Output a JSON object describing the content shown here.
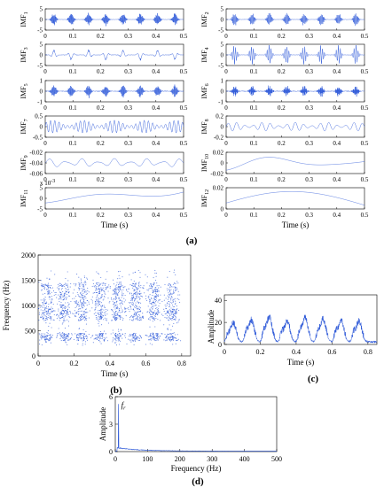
{
  "chart_data": [
    {
      "panel": "a",
      "panel_label": "(a)",
      "type": "line",
      "xlabel": "Time (s)",
      "xlim": [
        0,
        0.5
      ],
      "x_ticks": [
        "0",
        "0.1",
        "0.2",
        "0.3",
        "0.4",
        "0.5"
      ],
      "subplots": [
        {
          "ylabel": "IMF",
          "sub": "1",
          "ylim": [
            -5,
            5
          ],
          "yticks": [
            "5",
            "0",
            "-5"
          ],
          "exp": "",
          "kind": "burst",
          "amp": 0.55,
          "freq": 600,
          "bursts": 8,
          "noise": 0.3
        },
        {
          "ylabel": "IMF",
          "sub": "2",
          "ylim": [
            -5,
            5
          ],
          "yticks": [
            "5",
            "0",
            "-5"
          ],
          "exp": "",
          "kind": "burst",
          "amp": 0.55,
          "freq": 560,
          "bursts": 8,
          "noise": 0.3
        },
        {
          "ylabel": "IMF",
          "sub": "3",
          "ylim": [
            -5,
            5
          ],
          "yticks": [
            "5",
            "0",
            "-5"
          ],
          "exp": "",
          "kind": "burst",
          "amp": 0.45,
          "freq": 480,
          "bursts": 8,
          "noise": 0.4
        },
        {
          "ylabel": "IMF",
          "sub": "4",
          "ylim": [
            -5,
            5
          ],
          "yticks": [
            "5",
            "0",
            "-5"
          ],
          "exp": "",
          "kind": "burst",
          "amp": 0.85,
          "freq": 420,
          "bursts": 8,
          "noise": 0.3
        },
        {
          "ylabel": "IMF",
          "sub": "5",
          "ylim": [
            -1,
            1
          ],
          "yticks": [
            "1",
            "0",
            "-1"
          ],
          "exp": "",
          "kind": "burst",
          "amp": 0.55,
          "freq": 340,
          "bursts": 8,
          "noise": 0.6
        },
        {
          "ylabel": "IMF",
          "sub": "6",
          "ylim": [
            -1,
            1
          ],
          "yticks": [
            "1",
            "0",
            "-1"
          ],
          "exp": "",
          "kind": "burst",
          "amp": 0.5,
          "freq": 260,
          "bursts": 8,
          "noise": 0.6
        },
        {
          "ylabel": "IMF",
          "sub": "7",
          "ylim": [
            -0.5,
            0.5
          ],
          "yticks": [
            "0.5",
            "0",
            "-0.5"
          ],
          "exp": "",
          "kind": "wave",
          "amp": 0.65,
          "freq": 65,
          "noise": 0.2
        },
        {
          "ylabel": "IMF",
          "sub": "8",
          "ylim": [
            -0.2,
            0.2
          ],
          "yticks": [
            "0.2",
            "0",
            "-0.2"
          ],
          "exp": "",
          "kind": "wave",
          "amp": 0.45,
          "freq": 33,
          "noise": 0.2
        },
        {
          "ylabel": "IMF",
          "sub": "9",
          "ylim": [
            -0.06,
            -0.02
          ],
          "yticks": [
            "-0.02",
            "-0.04",
            "-0.06"
          ],
          "exp": "",
          "kind": "wave",
          "amp": 0.45,
          "freq": 17,
          "noise": 0.1
        },
        {
          "ylabel": "IMF",
          "sub": "10",
          "ylim": [
            -0.02,
            0.02
          ],
          "yticks": [
            "0.02",
            "0",
            "-0.02"
          ],
          "exp": "",
          "kind": "slow10",
          "amp": 0.8,
          "noise": 0
        },
        {
          "ylabel": "IMF",
          "sub": "11",
          "ylim": [
            -5,
            5
          ],
          "yticks": [
            "5",
            "0",
            "-5"
          ],
          "exp": "x 10",
          "exp_power": "-3",
          "kind": "slow11",
          "amp": 0.8,
          "noise": 0
        },
        {
          "ylabel": "IMF",
          "sub": "12",
          "ylim": [
            0,
            0.02
          ],
          "yticks": [
            "0.02",
            "0"
          ],
          "exp": "",
          "kind": "arch",
          "amp": 0.8,
          "noise": 0
        }
      ]
    },
    {
      "panel": "b",
      "panel_label": "(b)",
      "type": "scatter",
      "xlabel": "Time (s)",
      "ylabel": "Frequency (Hz)",
      "xlim": [
        0,
        0.85
      ],
      "ylim": [
        0,
        2000
      ],
      "x_ticks": [
        "0",
        "0.2",
        "0.4",
        "0.6",
        "0.8"
      ],
      "y_ticks": [
        "0",
        "500",
        "1000",
        "1500",
        "2000"
      ],
      "burst_centers_s": [
        0.05,
        0.145,
        0.245,
        0.345,
        0.445,
        0.545,
        0.645,
        0.745
      ],
      "frequency_bands_hz": [
        [
          300,
          450
        ],
        [
          700,
          900
        ],
        [
          900,
          1200
        ],
        [
          1200,
          1450
        ]
      ],
      "color": "#2b57d8"
    },
    {
      "panel": "c",
      "panel_label": "(c)",
      "type": "line",
      "xlabel": "Time (s)",
      "ylabel": "Amplitude",
      "xlim": [
        0,
        0.85
      ],
      "ylim": [
        0,
        45
      ],
      "x_ticks": [
        "0",
        "0.2",
        "0.4",
        "0.6",
        "0.8"
      ],
      "y_ticks": [
        "0",
        "20",
        "40"
      ],
      "peak_times_s": [
        0.05,
        0.15,
        0.25,
        0.35,
        0.45,
        0.55,
        0.65,
        0.75
      ],
      "peak_values": [
        16,
        19,
        22,
        18,
        21,
        20,
        19,
        18
      ],
      "color": "#2b57d8"
    },
    {
      "panel": "d",
      "panel_label": "(d)",
      "type": "line",
      "xlabel": "Frequency (Hz)",
      "ylabel": "Amplitude",
      "annotation": "f",
      "annotation_sub": "r",
      "xlim": [
        0,
        500
      ],
      "ylim": [
        0,
        6
      ],
      "x_ticks": [
        "0",
        "100",
        "200",
        "300",
        "400",
        "500"
      ],
      "y_ticks": [
        "0",
        "3",
        "6"
      ],
      "peak_frequency_hz": 10,
      "peak_value": 5.2,
      "color": "#2b57d8"
    }
  ]
}
